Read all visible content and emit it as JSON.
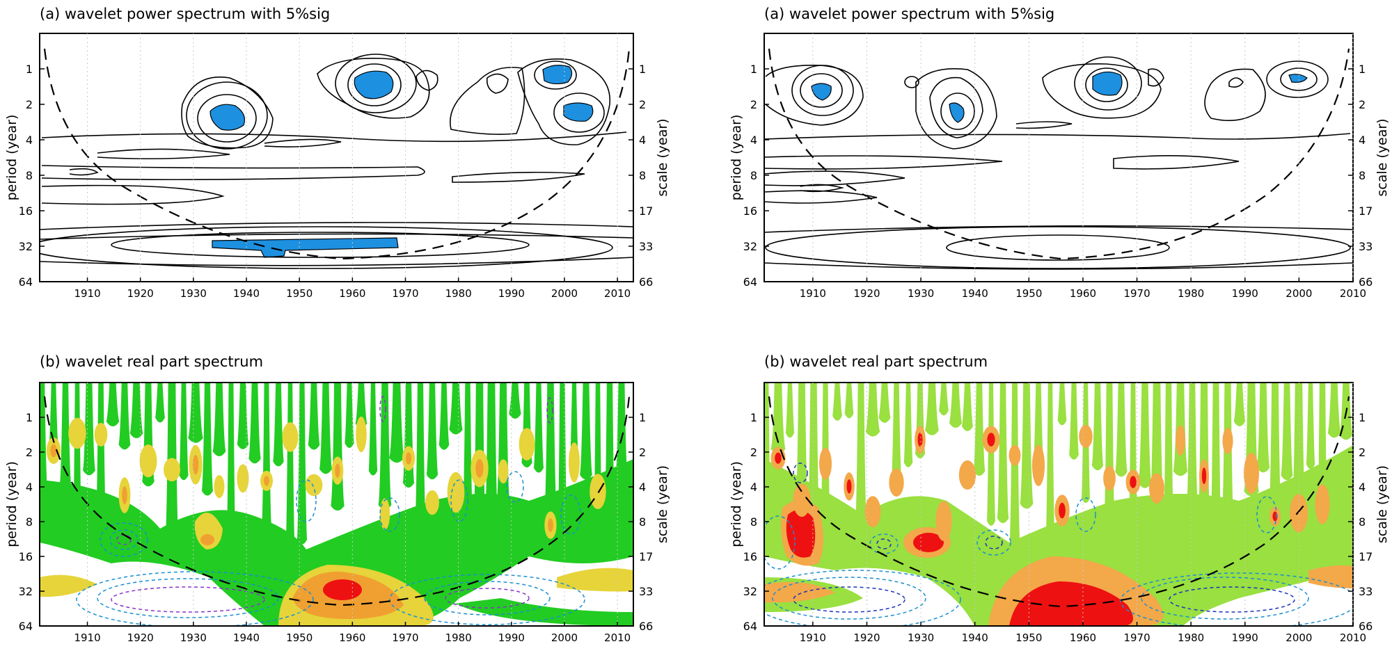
{
  "chart_data": [
    {
      "id": "left-power",
      "type": "heatmap",
      "title": "(a) wavelet power spectrum with 5%sig",
      "ylabel": "period (year)",
      "ylabel_right": "scale (year)",
      "xlim": [
        1901,
        2013
      ],
      "x_ticks": [
        1910,
        1920,
        1930,
        1940,
        1950,
        1960,
        1970,
        1980,
        1990,
        2000,
        2010
      ],
      "y_ticks_left": [
        "1",
        "2",
        "4",
        "8",
        "16",
        "32",
        "64"
      ],
      "y_ticks_right": [
        "1",
        "2",
        "4",
        "8",
        "17",
        "33",
        "66"
      ],
      "yscale": "log2",
      "ylim": [
        0.5,
        64
      ],
      "cone_of_influence": [
        [
          1902,
          1
        ],
        [
          1908,
          4
        ],
        [
          1916,
          10
        ],
        [
          1930,
          22
        ],
        [
          1957,
          42
        ],
        [
          1980,
          28
        ],
        [
          1998,
          12
        ],
        [
          2007,
          4
        ],
        [
          2012,
          1
        ]
      ],
      "significant_regions": [
        {
          "x": 1936,
          "period": 2.8
        },
        {
          "x": 1963,
          "period": 1.3
        },
        {
          "x": 1998,
          "period": 1.2
        },
        {
          "x": 2003,
          "period": 2.5
        },
        {
          "x": 1951,
          "period": 34
        }
      ]
    },
    {
      "id": "right-power",
      "type": "heatmap",
      "title": "(a) wavelet power spectrum with 5%sig",
      "ylabel": "period (year)",
      "ylabel_right": "scale (year)",
      "xlim": [
        1901,
        2010
      ],
      "x_ticks": [
        1910,
        1920,
        1930,
        1940,
        1950,
        1960,
        1970,
        1980,
        1990,
        2000,
        2010
      ],
      "y_ticks_left": [
        "1",
        "2",
        "4",
        "8",
        "16",
        "32",
        "64"
      ],
      "y_ticks_right": [
        "1",
        "2",
        "4",
        "8",
        "17",
        "33",
        "66"
      ],
      "yscale": "log2",
      "ylim": [
        0.5,
        64
      ],
      "cone_of_influence": [
        [
          1902,
          1
        ],
        [
          1908,
          4
        ],
        [
          1915,
          10
        ],
        [
          1930,
          22
        ],
        [
          1956,
          42
        ],
        [
          1980,
          25
        ],
        [
          1997,
          10
        ],
        [
          2006,
          3
        ],
        [
          2009,
          1
        ]
      ],
      "significant_regions": [
        {
          "x": 1912,
          "period": 1.7
        },
        {
          "x": 1936,
          "period": 2.8
        },
        {
          "x": 1964,
          "period": 1.5
        },
        {
          "x": 2000,
          "period": 1.2
        }
      ]
    },
    {
      "id": "left-real",
      "type": "heatmap",
      "title": "(b) wavelet real part spectrum",
      "ylabel": "period (year)",
      "ylabel_right": "scale (year)",
      "xlim": [
        1901,
        2013
      ],
      "x_ticks": [
        1910,
        1920,
        1930,
        1940,
        1950,
        1960,
        1970,
        1980,
        1990,
        2000,
        2010
      ],
      "y_ticks_left": [
        "1",
        "2",
        "4",
        "8",
        "16",
        "32",
        "64"
      ],
      "y_ticks_right": [
        "1",
        "2",
        "4",
        "8",
        "17",
        "33",
        "66"
      ],
      "yscale": "log2",
      "ylim": [
        0.5,
        64
      ],
      "cone_of_influence": [
        [
          1902,
          1
        ],
        [
          1908,
          4
        ],
        [
          1916,
          10
        ],
        [
          1930,
          22
        ],
        [
          1957,
          42
        ],
        [
          1980,
          28
        ],
        [
          1998,
          12
        ],
        [
          2007,
          4
        ],
        [
          2012,
          1
        ]
      ],
      "colors": {
        "level1": "#22cc22",
        "level2": "#e6d43a",
        "level3": "#f0a030",
        "level4": "#ee1111",
        "negative": "#1a8fd0",
        "negative_strong": "#8833cc"
      },
      "positive_peaks": [
        {
          "x": 1958,
          "period": 30
        },
        {
          "x": 1933,
          "period": 12
        },
        {
          "x": 1938,
          "period": 2.5
        }
      ],
      "negative_centers": [
        {
          "x": 1930,
          "period": 40
        },
        {
          "x": 1985,
          "period": 35
        },
        {
          "x": 1923,
          "period": 12
        }
      ]
    },
    {
      "id": "right-real",
      "type": "heatmap",
      "title": "(b) wavelet real part spectrum",
      "ylabel": "period (year)",
      "ylabel_right": "scale (year)",
      "xlim": [
        1901,
        2010
      ],
      "x_ticks": [
        1910,
        1920,
        1930,
        1940,
        1950,
        1960,
        1970,
        1980,
        1990,
        2000,
        2010
      ],
      "y_ticks_left": [
        "1",
        "2",
        "4",
        "8",
        "16",
        "32",
        "64"
      ],
      "y_ticks_right": [
        "1",
        "2",
        "4",
        "8",
        "17",
        "33",
        "66"
      ],
      "yscale": "log2",
      "ylim": [
        0.5,
        64
      ],
      "cone_of_influence": [
        [
          1902,
          1
        ],
        [
          1908,
          4
        ],
        [
          1915,
          10
        ],
        [
          1930,
          22
        ],
        [
          1956,
          42
        ],
        [
          1980,
          25
        ],
        [
          1997,
          10
        ],
        [
          2006,
          3
        ],
        [
          2009,
          1
        ]
      ],
      "colors": {
        "level1": "#99e040",
        "level2": "#f3a84a",
        "level3": "#ee1111",
        "negative": "#1a8fd0",
        "negative_strong": "#1a33bb"
      },
      "positive_peaks": [
        {
          "x": 1960,
          "period": 45
        },
        {
          "x": 1910,
          "period": 10
        },
        {
          "x": 1932,
          "period": 12
        },
        {
          "x": 1936,
          "period": 7
        }
      ],
      "negative_centers": [
        {
          "x": 1918,
          "period": 30
        },
        {
          "x": 1988,
          "period": 40
        },
        {
          "x": 1922,
          "period": 10
        }
      ]
    }
  ]
}
